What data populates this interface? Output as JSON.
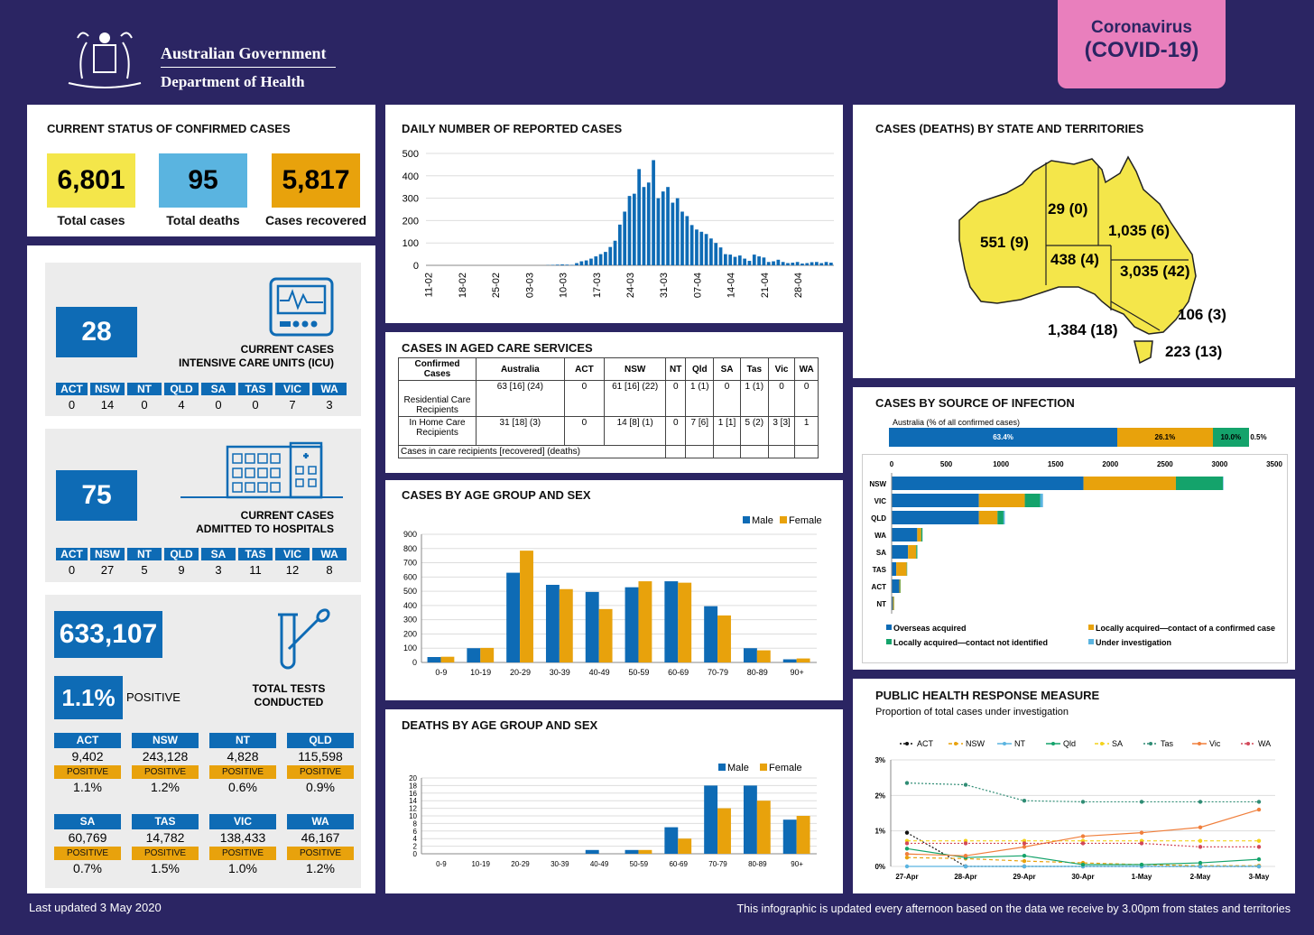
{
  "header": {
    "gov": "Australian Government",
    "dept": "Department of Health",
    "badge_line1": "Coronavirus",
    "badge_line2": "(COVID-19)"
  },
  "status": {
    "title": "CURRENT STATUS OF CONFIRMED CASES",
    "total_cases": "6,801",
    "total_cases_label": "Total cases",
    "total_deaths": "95",
    "total_deaths_label": "Total deaths",
    "recovered": "5,817",
    "recovered_label": "Cases recovered"
  },
  "states": [
    "ACT",
    "NSW",
    "NT",
    "QLD",
    "SA",
    "TAS",
    "VIC",
    "WA"
  ],
  "icu": {
    "value": "28",
    "label1": "CURRENT CASES",
    "label2": "INTENSIVE CARE UNITS (ICU)",
    "counts": [
      "0",
      "14",
      "0",
      "4",
      "0",
      "0",
      "7",
      "3"
    ]
  },
  "hosp": {
    "value": "75",
    "label1": "CURRENT CASES",
    "label2": "ADMITTED TO HOSPITALS",
    "counts": [
      "0",
      "27",
      "5",
      "9",
      "3",
      "11",
      "12",
      "8"
    ]
  },
  "tests": {
    "value": "633,107",
    "positive_pct": "1.1%",
    "positive_label": "POSITIVE",
    "label1": "TOTAL TESTS",
    "label2": "CONDUCTED",
    "positive_tag": "POSITIVE",
    "rows": [
      [
        {
          "s": "ACT",
          "v": "9,402",
          "p": "1.1%"
        },
        {
          "s": "NSW",
          "v": "243,128",
          "p": "1.2%"
        },
        {
          "s": "NT",
          "v": "4,828",
          "p": "0.6%"
        },
        {
          "s": "QLD",
          "v": "115,598",
          "p": "0.9%"
        }
      ],
      [
        {
          "s": "SA",
          "v": "60,769",
          "p": "0.7%"
        },
        {
          "s": "TAS",
          "v": "14,782",
          "p": "1.5%"
        },
        {
          "s": "VIC",
          "v": "138,433",
          "p": "1.0%"
        },
        {
          "s": "WA",
          "v": "46,167",
          "p": "1.2%"
        }
      ]
    ]
  },
  "daily": {
    "title": "DAILY NUMBER OF REPORTED CASES"
  },
  "aged": {
    "title": "CASES IN AGED CARE SERVICES",
    "headers": [
      "Confirmed Cases",
      "Australia",
      "ACT",
      "NSW",
      "NT",
      "Qld",
      "SA",
      "Tas",
      "Vic",
      "WA"
    ],
    "rows": [
      [
        "Residential Care Recipients",
        "63 [16] (24)",
        "0",
        "61 [16] (22)",
        "0",
        "1 (1)",
        "0",
        "1 (1)",
        "0",
        "0"
      ],
      [
        "In Home Care Recipients",
        "31 [18] (3)",
        "0",
        "14 [8] (1)",
        "0",
        "7 [6]",
        "1 [1]",
        "5 (2)",
        "3 [3]",
        "1"
      ]
    ],
    "note": "Cases in care recipients [recovered] (deaths)"
  },
  "age_sex": {
    "title": "CASES BY AGE GROUP AND SEX"
  },
  "deaths_age": {
    "title": "DEATHS BY AGE GROUP AND SEX"
  },
  "map": {
    "title": "CASES (DEATHS) BY STATE AND TERRITORIES",
    "wa": "551 (9)",
    "nt": "29 (0)",
    "qld": "1,035 (6)",
    "sa": "438 (4)",
    "nsw": "3,035 (42)",
    "act": "106 (3)",
    "vic": "1,384 (18)",
    "tas": "223 (13)"
  },
  "source": {
    "title": "CASES BY SOURCE OF INFECTION",
    "sub": "Australia (% of all confirmed cases)",
    "pcts": [
      "63.4%",
      "26.1%",
      "10.0%",
      "0.5%"
    ]
  },
  "response": {
    "title": "PUBLIC HEALTH RESPONSE MEASURE",
    "sub": "Proportion of total cases under investigation"
  },
  "footer": {
    "left": "Last updated 3 May 2020",
    "right": "This infographic is updated every afternoon based on the data we receive by 3.00pm from states and territories"
  },
  "colors": {
    "navy": "#2b2563",
    "blue": "#0e6bb5",
    "orange": "#e8a20c",
    "yellow": "#f4e64a",
    "teal": "#14a36b",
    "lightblue": "#5ab4e0",
    "pink": "#e97fbd"
  },
  "chart_data": [
    {
      "type": "bar",
      "title": "DAILY NUMBER OF REPORTED CASES",
      "tick_labels": [
        "11-02",
        "18-02",
        "25-02",
        "03-03",
        "10-03",
        "17-03",
        "24-03",
        "31-03",
        "07-04",
        "14-04",
        "21-04",
        "28-04"
      ],
      "ylim": [
        0,
        500
      ],
      "yticks": [
        0,
        100,
        200,
        300,
        400,
        500
      ],
      "values": [
        0,
        0,
        0,
        0,
        0,
        0,
        0,
        0,
        0,
        0,
        0,
        0,
        0,
        0,
        0,
        0,
        0,
        0,
        0,
        0,
        0,
        0,
        0,
        0,
        0,
        1,
        2,
        3,
        4,
        3,
        2,
        10,
        18,
        22,
        30,
        40,
        50,
        60,
        82,
        110,
        182,
        240,
        310,
        320,
        430,
        350,
        370,
        470,
        300,
        330,
        350,
        280,
        300,
        240,
        220,
        180,
        160,
        150,
        140,
        120,
        100,
        80,
        50,
        48,
        38,
        44,
        30,
        20,
        48,
        40,
        35,
        15,
        18,
        25,
        15,
        10,
        12,
        15,
        8,
        10,
        14,
        15,
        10,
        15,
        12
      ],
      "grid": true
    },
    {
      "type": "bar",
      "title": "CASES BY AGE GROUP AND SEX",
      "categories": [
        "0-9",
        "10-19",
        "20-29",
        "30-39",
        "40-49",
        "50-59",
        "60-69",
        "70-79",
        "80-89",
        "90+"
      ],
      "ylim": [
        0,
        900
      ],
      "yticks": [
        0,
        100,
        200,
        300,
        400,
        500,
        600,
        700,
        800,
        900
      ],
      "series": [
        {
          "name": "Male",
          "values": [
            38,
            100,
            630,
            545,
            495,
            528,
            570,
            395,
            100,
            22
          ]
        },
        {
          "name": "Female",
          "values": [
            40,
            102,
            785,
            515,
            375,
            570,
            560,
            330,
            85,
            28
          ]
        }
      ],
      "legend": "top-right",
      "grid": true
    },
    {
      "type": "bar",
      "title": "DEATHS BY AGE GROUP AND SEX",
      "categories": [
        "0-9",
        "10-19",
        "20-29",
        "30-39",
        "40-49",
        "50-59",
        "60-69",
        "70-79",
        "80-89",
        "90+"
      ],
      "ylim": [
        0,
        20
      ],
      "yticks": [
        0,
        2,
        4,
        6,
        8,
        10,
        12,
        14,
        16,
        18,
        20
      ],
      "series": [
        {
          "name": "Male",
          "values": [
            0,
            0,
            0,
            0,
            1,
            1,
            7,
            18,
            18,
            9
          ]
        },
        {
          "name": "Female",
          "values": [
            0,
            0,
            0,
            0,
            0,
            1,
            4,
            12,
            14,
            10
          ]
        }
      ],
      "legend": "top-right",
      "grid": true
    },
    {
      "type": "bar",
      "title": "CASES BY SOURCE OF INFECTION",
      "orientation": "horizontal-stacked",
      "categories": [
        "NSW",
        "VIC",
        "QLD",
        "WA",
        "SA",
        "TAS",
        "ACT",
        "NT"
      ],
      "xlim": [
        0,
        3500
      ],
      "xticks": [
        0,
        500,
        1000,
        1500,
        2000,
        2500,
        3000,
        3500
      ],
      "series": [
        {
          "name": "Overseas acquired",
          "values": [
            1755,
            798,
            798,
            234,
            150,
            42,
            70,
            12
          ]
        },
        {
          "name": "Locally acquired—contact of a confirmed case",
          "values": [
            845,
            420,
            170,
            36,
            75,
            96,
            8,
            9
          ]
        },
        {
          "name": "Locally acquired—contact not identified",
          "values": [
            430,
            140,
            55,
            12,
            10,
            4,
            4,
            2
          ]
        },
        {
          "name": "Under investigation",
          "values": [
            5,
            26,
            12,
            1,
            0,
            0,
            0,
            0
          ]
        }
      ],
      "legend": "bottom"
    },
    {
      "type": "line",
      "title": "PUBLIC HEALTH RESPONSE MEASURE",
      "categories": [
        "27-Apr",
        "28-Apr",
        "29-Apr",
        "30-Apr",
        "1-May",
        "2-May",
        "3-May"
      ],
      "ylim": [
        0,
        3
      ],
      "yticks": [
        "0%",
        "1%",
        "2%",
        "3%"
      ],
      "series": [
        {
          "name": "ACT",
          "values": [
            0.95,
            0,
            0,
            0,
            0,
            0,
            0
          ]
        },
        {
          "name": "NSW",
          "values": [
            0.25,
            0.22,
            0.15,
            0.1,
            0.05,
            0.02,
            0.02
          ]
        },
        {
          "name": "NT",
          "values": [
            0,
            0,
            0,
            0,
            0,
            0,
            0
          ]
        },
        {
          "name": "Qld",
          "values": [
            0.5,
            0.25,
            0.3,
            0.05,
            0.05,
            0.1,
            0.2
          ]
        },
        {
          "name": "SA",
          "values": [
            0.72,
            0.72,
            0.72,
            0.72,
            0.72,
            0.72,
            0.72
          ]
        },
        {
          "name": "Tas",
          "values": [
            2.35,
            2.3,
            1.85,
            1.82,
            1.82,
            1.82,
            1.82
          ]
        },
        {
          "name": "Vic",
          "values": [
            0.35,
            0.3,
            0.55,
            0.85,
            0.95,
            1.1,
            1.6
          ]
        },
        {
          "name": "WA",
          "values": [
            0.65,
            0.65,
            0.65,
            0.65,
            0.65,
            0.55,
            0.55
          ]
        }
      ],
      "legend": "top"
    }
  ]
}
